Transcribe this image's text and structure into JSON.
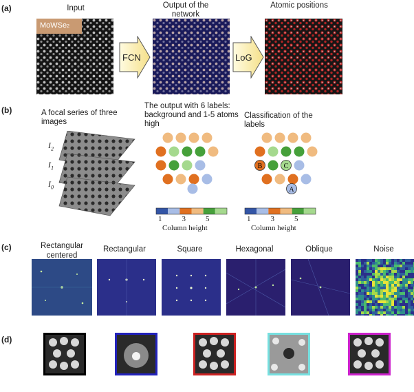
{
  "panel_labels": {
    "a": "(a)",
    "b": "(b)",
    "c": "(c)",
    "d": "(d)"
  },
  "row_a": {
    "input_title": "Input",
    "input_badge": "MoWSe",
    "input_badge_sub": "2",
    "output_title": "Output of the network",
    "positions_title": "Atomic positions",
    "arrow1": "FCN",
    "arrow2": "LoG"
  },
  "row_b": {
    "focal_caption": "A focal series of three images",
    "stack_labels": [
      {
        "base": "I",
        "sub": "2"
      },
      {
        "base": "I",
        "sub": "1"
      },
      {
        "base": "I",
        "sub": "0"
      }
    ],
    "output_caption": "The output with 6 labels: background and 1-5 atoms high",
    "classification_caption": "Classification of the labels",
    "class_markers": [
      "B",
      "C",
      "A"
    ],
    "colorbar_ticks": [
      "1",
      "3",
      "5"
    ],
    "colorbar_label": "Column height",
    "colors": [
      "#3355a6",
      "#a8bde6",
      "#e07020",
      "#f0bb80",
      "#46a03a",
      "#a5d98e"
    ]
  },
  "row_c": {
    "titles": [
      "Rectangular centered",
      "Rectangular",
      "Square",
      "Hexagonal",
      "Oblique",
      "Noise"
    ]
  },
  "row_d": {
    "border_colors": [
      "#000000",
      "#2222bb",
      "#cc2222",
      "#77e0e0",
      "#cc22cc"
    ]
  }
}
